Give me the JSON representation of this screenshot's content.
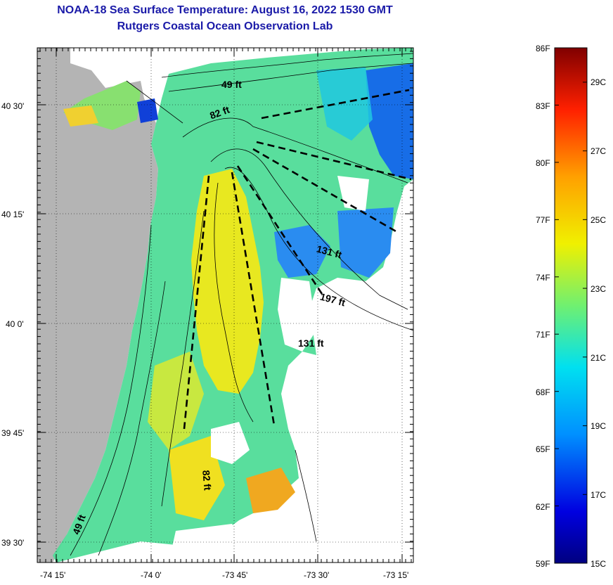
{
  "title": {
    "line1": "NOAA-18 Sea Surface Temperature:  August 16, 2022 1530 GMT",
    "line2": "Rutgers Coastal Ocean Observation Lab"
  },
  "map": {
    "lat_ticks": [
      "40 30'",
      "40 15'",
      "40 0'",
      "39 45'",
      "39 30'"
    ],
    "lon_ticks": [
      "-74 15'",
      "-74 0'",
      "-73 45'",
      "-73 30'",
      "-73 15'"
    ],
    "depth_labels": [
      "49 ft",
      "82 ft",
      "131 ft",
      "197 ft",
      "131 ft",
      "82 ft",
      "49 ft"
    ],
    "colors": {
      "land": "#b4b4b4",
      "no_data": "#ffffff"
    }
  },
  "colorbar": {
    "fahrenheit": [
      "86F",
      "83F",
      "80F",
      "77F",
      "74F",
      "71F",
      "68F",
      "65F",
      "62F",
      "59F"
    ],
    "celsius": [
      "29C",
      "27C",
      "25C",
      "23C",
      "21C",
      "19C",
      "17C",
      "15C"
    ],
    "range_f": [
      59,
      86
    ],
    "range_c": [
      15,
      30
    ]
  }
}
